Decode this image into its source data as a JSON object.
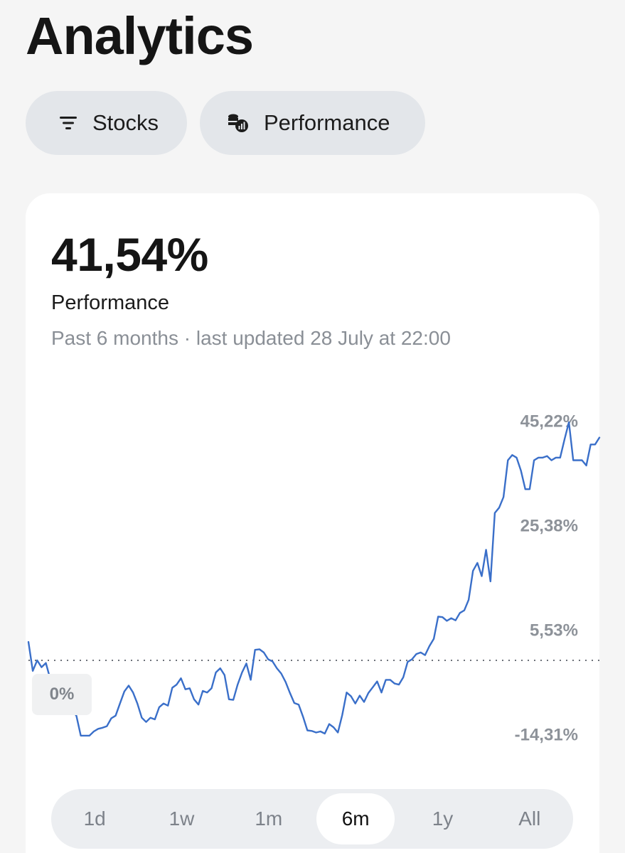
{
  "header": {
    "title": "Analytics"
  },
  "filters": [
    {
      "label": "Stocks",
      "icon": "filter-lines-icon"
    },
    {
      "label": "Performance",
      "icon": "coins-chart-icon"
    }
  ],
  "summary": {
    "value": "41,54%",
    "label": "Performance",
    "subtitle": "Past 6 months · last updated 28 July at 22:00"
  },
  "chart_data": {
    "type": "line",
    "title": "",
    "xlabel": "",
    "ylabel": "",
    "baseline_label": "0%",
    "baseline_value": 0,
    "y_tick_labels": [
      "45,22%",
      "25,38%",
      "5,53%",
      "-14,31%"
    ],
    "y_ticks": [
      45.22,
      25.38,
      5.53,
      -14.31
    ],
    "ylim": [
      -14.31,
      45.22
    ],
    "grid": false,
    "color": "#3a6fc9",
    "series": [
      {
        "values": [
          3.5,
          -2.0,
          0.0,
          -1.3,
          -0.5,
          -3.5,
          -5.0,
          -4.5,
          -6.0,
          -6.5,
          -9.5,
          -10.5,
          -14.3,
          -14.3,
          -14.3,
          -13.5,
          -13.0,
          -12.8,
          -12.5,
          -11.0,
          -10.5,
          -8.2,
          -5.9,
          -4.8,
          -6.1,
          -8.2,
          -10.9,
          -11.7,
          -10.9,
          -11.2,
          -8.9,
          -8.2,
          -8.6,
          -5.2,
          -4.6,
          -3.4,
          -5.5,
          -5.3,
          -7.4,
          -8.4,
          -5.8,
          -6.1,
          -5.3,
          -2.3,
          -1.5,
          -2.8,
          -7.4,
          -7.5,
          -4.6,
          -2.3,
          -0.6,
          -3.7,
          2.0,
          2.1,
          1.5,
          0.2,
          -0.2,
          -1.5,
          -2.5,
          -4.1,
          -6.2,
          -8.1,
          -8.4,
          -10.7,
          -13.3,
          -13.4,
          -13.7,
          -13.5,
          -13.9,
          -12.1,
          -12.7,
          -13.7,
          -10.4,
          -6.1,
          -6.8,
          -8.2,
          -6.7,
          -7.9,
          -6.2,
          -5.1,
          -4.0,
          -6.1,
          -3.7,
          -3.7,
          -4.4,
          -4.6,
          -3.2,
          -0.3,
          0.2,
          1.2,
          1.5,
          1.0,
          2.7,
          4.1,
          8.3,
          8.2,
          7.5,
          8.0,
          7.6,
          9.0,
          9.5,
          11.5,
          17.0,
          18.5,
          16.0,
          21.0,
          15.0,
          28.0,
          29.0,
          31.0,
          38.0,
          39.0,
          38.5,
          36.0,
          32.5,
          32.5,
          38.0,
          38.5,
          38.5,
          38.8,
          38.0,
          38.5,
          38.5,
          42.0,
          45.22,
          38.0,
          38.0,
          38.0,
          37.0,
          41.0,
          41.0,
          42.3
        ]
      }
    ]
  },
  "range": {
    "options": [
      "1d",
      "1w",
      "1m",
      "6m",
      "1y",
      "All"
    ],
    "selected": "6m"
  }
}
